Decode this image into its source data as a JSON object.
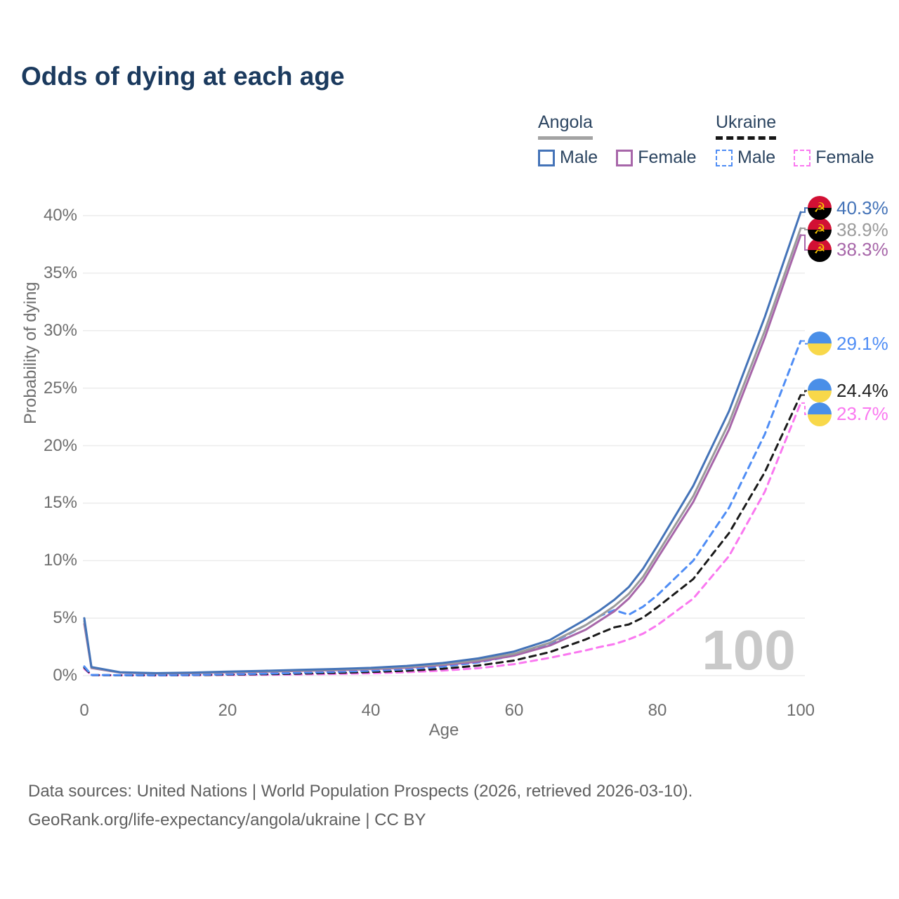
{
  "title": "Odds of dying at each age",
  "legend": {
    "groups": [
      {
        "country": "Angola",
        "line_style": "solid",
        "line_color": "#9b9b9b",
        "items": [
          {
            "label": "Male",
            "color": "#4473b8",
            "style": "solid"
          },
          {
            "label": "Female",
            "color": "#a766a9",
            "style": "solid"
          }
        ]
      },
      {
        "country": "Ukraine",
        "line_style": "dashed",
        "line_color": "#161616",
        "items": [
          {
            "label": "Male",
            "color": "#4f8df5",
            "style": "dashed"
          },
          {
            "label": "Female",
            "color": "#fa78f0",
            "style": "dashed"
          }
        ]
      }
    ]
  },
  "chart_data": {
    "type": "line",
    "title": "Odds of dying at each age",
    "xlabel": "Age",
    "ylabel": "Probability of dying",
    "xlim": [
      0,
      100
    ],
    "ylim": [
      0,
      40
    ],
    "grid": "horizontal",
    "legend_position": "top-right",
    "watermark": "100",
    "x_ticks": [
      0,
      20,
      40,
      60,
      80,
      100
    ],
    "y_ticks": [
      {
        "v": 0,
        "label": "0%"
      },
      {
        "v": 5,
        "label": "5%"
      },
      {
        "v": 10,
        "label": "10%"
      },
      {
        "v": 15,
        "label": "15%"
      },
      {
        "v": 20,
        "label": "20%"
      },
      {
        "v": 25,
        "label": "25%"
      },
      {
        "v": 30,
        "label": "30%"
      },
      {
        "v": 35,
        "label": "35%"
      },
      {
        "v": 40,
        "label": "40%"
      }
    ],
    "x": [
      0,
      1,
      5,
      10,
      15,
      20,
      25,
      30,
      35,
      40,
      45,
      50,
      55,
      60,
      65,
      70,
      72,
      74,
      76,
      78,
      80,
      85,
      90,
      95,
      100
    ],
    "series": [
      {
        "id": "ukraine-female",
        "name": "Ukraine Female",
        "country": "Ukraine",
        "sex": "Female",
        "color": "#fa78f0",
        "dash": "dashed",
        "end_label": "23.7%",
        "flag": "ukraine",
        "values": [
          0.6,
          0.05,
          0.03,
          0.02,
          0.04,
          0.06,
          0.08,
          0.11,
          0.15,
          0.21,
          0.3,
          0.44,
          0.65,
          1.0,
          1.55,
          2.2,
          2.5,
          2.75,
          3.15,
          3.65,
          4.4,
          6.7,
          10.4,
          16.0,
          23.7
        ]
      },
      {
        "id": "ukraine-both",
        "name": "Ukraine (both sexes)",
        "country": "Ukraine",
        "sex": "Both",
        "color": "#1a1a1a",
        "dash": "dashed",
        "end_label": "24.4%",
        "flag": "ukraine",
        "values": [
          0.7,
          0.05,
          0.03,
          0.03,
          0.05,
          0.09,
          0.13,
          0.18,
          0.24,
          0.32,
          0.43,
          0.6,
          0.88,
          1.32,
          2.05,
          3.15,
          3.7,
          4.2,
          4.45,
          5.05,
          5.95,
          8.4,
          12.4,
          17.7,
          24.4
        ]
      },
      {
        "id": "ukraine-male",
        "name": "Ukraine Male",
        "country": "Ukraine",
        "sex": "Male",
        "color": "#4f8df5",
        "dash": "dashed",
        "end_label": "29.1%",
        "flag": "ukraine",
        "values": [
          0.8,
          0.06,
          0.04,
          0.04,
          0.07,
          0.12,
          0.18,
          0.25,
          0.33,
          0.43,
          0.56,
          0.78,
          1.15,
          1.75,
          2.75,
          4.4,
          5.2,
          5.7,
          5.3,
          6.0,
          7.0,
          10.0,
          14.6,
          21.0,
          29.1
        ]
      },
      {
        "id": "angola-female",
        "name": "Angola Female",
        "country": "Angola",
        "sex": "Female",
        "color": "#a766a9",
        "dash": "solid",
        "end_label": "38.3%",
        "flag": "angola",
        "values": [
          4.5,
          0.66,
          0.26,
          0.19,
          0.22,
          0.28,
          0.34,
          0.41,
          0.47,
          0.56,
          0.69,
          0.92,
          1.22,
          1.74,
          2.62,
          4.0,
          4.8,
          5.6,
          6.7,
          8.2,
          10.2,
          15.1,
          21.4,
          29.4,
          38.3
        ]
      },
      {
        "id": "angola-both",
        "name": "Angola (both sexes)",
        "country": "Angola",
        "sex": "Both",
        "color": "#9b9b9b",
        "dash": "solid",
        "end_label": "38.9%",
        "flag": "angola",
        "values": [
          4.75,
          0.7,
          0.28,
          0.2,
          0.24,
          0.31,
          0.38,
          0.45,
          0.52,
          0.61,
          0.76,
          1.0,
          1.35,
          1.9,
          2.85,
          4.4,
          5.2,
          6.05,
          7.1,
          8.6,
          10.6,
          15.6,
          22.0,
          30.0,
          38.9
        ]
      },
      {
        "id": "angola-male",
        "name": "Angola Male",
        "country": "Angola",
        "sex": "Male",
        "color": "#4473b8",
        "dash": "solid",
        "end_label": "40.3%",
        "flag": "angola",
        "values": [
          5.0,
          0.75,
          0.3,
          0.22,
          0.27,
          0.35,
          0.42,
          0.5,
          0.58,
          0.68,
          0.85,
          1.1,
          1.5,
          2.1,
          3.1,
          4.9,
          5.7,
          6.6,
          7.7,
          9.3,
          11.3,
          16.5,
          23.0,
          31.2,
          40.3
        ]
      }
    ]
  },
  "icons": {
    "angola_flag_emblem": "☭"
  },
  "footer": {
    "line1": "Data sources: United Nations | World Population Prospects (2026, retrieved 2026-03-10).",
    "line2": "GeoRank.org/life-expectancy/angola/ukraine | CC BY"
  }
}
